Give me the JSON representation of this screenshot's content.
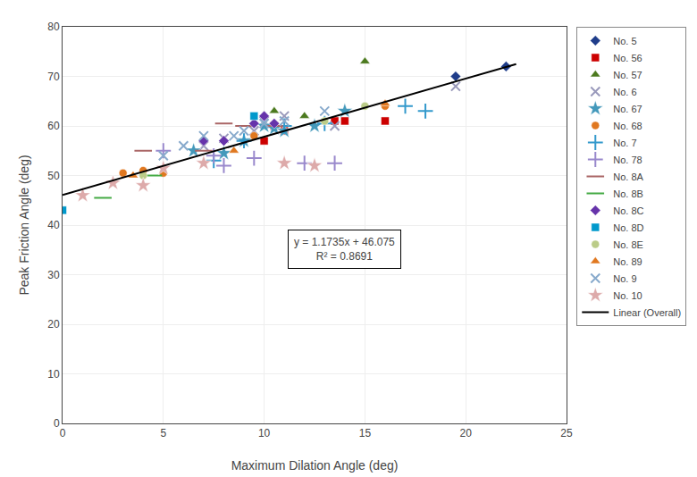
{
  "chart_data": {
    "type": "scatter",
    "xlabel": "Maximum Dilation Angle (deg)",
    "ylabel": "Peak Friction Angle (deg)",
    "xlim": [
      0,
      25
    ],
    "ylim": [
      0,
      80
    ],
    "xticks": [
      0,
      5,
      10,
      15,
      20,
      25
    ],
    "yticks": [
      0,
      10,
      20,
      30,
      40,
      50,
      60,
      70,
      80
    ],
    "grid": true,
    "legend": "right",
    "annotations": [
      "y = 1.1735x + 46.075",
      "R² = 0.8691"
    ],
    "series": [
      {
        "name": "No. 5",
        "type": "scatter",
        "color": "#1F3D8A",
        "marker": "diamond",
        "x": [
          19.5,
          22.0
        ],
        "values": [
          70.0,
          72.0
        ]
      },
      {
        "name": "No. 56",
        "type": "scatter",
        "color": "#CC0000",
        "marker": "square",
        "x": [
          10.0,
          10.5,
          11.0,
          13.5,
          14.0,
          16.0
        ],
        "values": [
          57.0,
          60.0,
          59.0,
          61.0,
          61.0,
          61.0
        ]
      },
      {
        "name": "No. 57",
        "type": "scatter",
        "color": "#4C7A1F",
        "marker": "triangle-up",
        "x": [
          10.5,
          12.0,
          15.0
        ],
        "values": [
          63.0,
          62.0,
          73.0
        ]
      },
      {
        "name": "No. 6",
        "type": "scatter",
        "color": "#9999BB",
        "marker": "x-thin",
        "x": [
          7.0,
          8.0,
          9.5,
          10.0,
          11.0,
          13.5,
          19.5
        ],
        "values": [
          56.0,
          57.5,
          59.0,
          61.0,
          62.0,
          60.0,
          68.0
        ]
      },
      {
        "name": "No. 67",
        "type": "scatter",
        "color": "#4499BB",
        "marker": "star",
        "x": [
          6.5,
          8.0,
          9.0,
          10.0,
          10.5,
          11.0,
          12.5,
          14.0
        ],
        "values": [
          55.0,
          54.5,
          57.0,
          60.0,
          59.5,
          59.0,
          60.0,
          63.0
        ]
      },
      {
        "name": "No. 68",
        "type": "scatter",
        "color": "#E07820",
        "marker": "circle",
        "x": [
          3.0,
          4.0,
          5.0,
          9.5,
          16.0
        ],
        "values": [
          50.5,
          51.0,
          50.5,
          58.0,
          64.0
        ]
      },
      {
        "name": "No. 7",
        "type": "scatter",
        "color": "#3399CC",
        "marker": "cross-thin",
        "x": [
          7.5,
          9.0,
          11.0,
          13.0,
          17.0,
          18.0
        ],
        "values": [
          53.0,
          57.0,
          60.0,
          60.5,
          64.0,
          63.0
        ]
      },
      {
        "name": "No. 78",
        "type": "scatter",
        "color": "#9988CC",
        "marker": "cross-thin",
        "x": [
          5.0,
          7.5,
          8.0,
          9.5,
          12.0,
          13.5
        ],
        "values": [
          55.0,
          54.0,
          52.0,
          53.5,
          52.5,
          52.5
        ]
      },
      {
        "name": "No. 8A",
        "type": "scatter",
        "color": "#AA6666",
        "marker": "line-ew",
        "x": [
          4.0,
          7.0,
          8.0,
          9.0,
          10.5
        ],
        "values": [
          55.0,
          55.0,
          60.5,
          60.0,
          60.0
        ]
      },
      {
        "name": "No. 8B",
        "type": "scatter",
        "color": "#44AA44",
        "marker": "line-ew",
        "x": [
          2.0,
          4.5
        ],
        "values": [
          45.5,
          50.0
        ]
      },
      {
        "name": "No. 8C",
        "type": "scatter",
        "color": "#6633AA",
        "marker": "diamond",
        "x": [
          7.0,
          8.0,
          9.5,
          10.0,
          10.5
        ],
        "values": [
          57.0,
          57.0,
          60.5,
          62.0,
          60.5
        ]
      },
      {
        "name": "No. 8D",
        "type": "scatter",
        "color": "#0099CC",
        "marker": "square",
        "x": [
          0.0,
          9.5
        ],
        "values": [
          43.0,
          62.0
        ]
      },
      {
        "name": "No. 8E",
        "type": "scatter",
        "color": "#BBCC88",
        "marker": "circle",
        "x": [
          4.0,
          13.0,
          15.0
        ],
        "values": [
          50.0,
          61.0,
          64.0
        ]
      },
      {
        "name": "No. 89",
        "type": "scatter",
        "color": "#E07820",
        "marker": "triangle-up",
        "x": [
          3.5,
          8.5,
          16.0
        ],
        "values": [
          50.0,
          55.0,
          64.5
        ]
      },
      {
        "name": "No. 9",
        "type": "scatter",
        "color": "#88AACC",
        "marker": "x-thin",
        "x": [
          5.0,
          6.0,
          7.0,
          8.5,
          9.0,
          10.0,
          11.0,
          13.0
        ],
        "values": [
          54.0,
          56.0,
          58.0,
          58.0,
          59.0,
          60.5,
          61.0,
          63.0
        ]
      },
      {
        "name": "No. 10",
        "type": "scatter",
        "color": "#DDAAAA",
        "marker": "star",
        "x": [
          1.0,
          2.5,
          4.0,
          5.0,
          7.0,
          11.0,
          12.5
        ],
        "values": [
          46.0,
          48.5,
          48.0,
          51.5,
          52.5,
          52.5,
          52.0
        ]
      },
      {
        "name": "Linear (Overall)",
        "type": "line",
        "color": "#000000",
        "line_style": "solid",
        "x": [
          0,
          22.5
        ],
        "values": [
          46.075,
          72.47875
        ]
      }
    ]
  }
}
